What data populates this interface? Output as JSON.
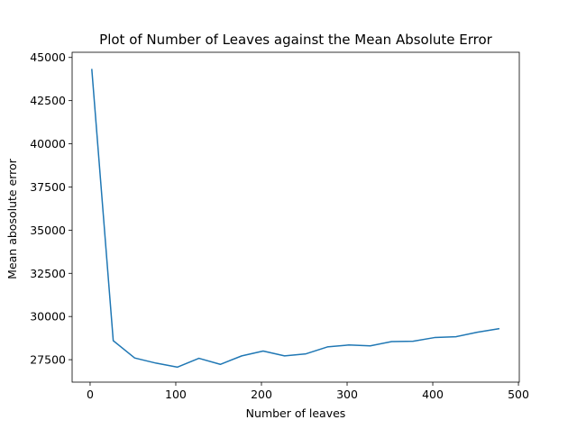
{
  "chart_data": {
    "type": "line",
    "title": "Plot of Number of Leaves against the Mean Absolute Error",
    "xlabel": "Number of leaves",
    "ylabel": "Mean abosolute error",
    "xlim": [
      -21,
      501
    ],
    "ylim": [
      26200,
      45300
    ],
    "xticks": [
      0,
      100,
      200,
      300,
      400,
      500
    ],
    "yticks": [
      27500,
      30000,
      32500,
      35000,
      37500,
      40000,
      42500,
      45000
    ],
    "xtick_labels": [
      "0",
      "100",
      "200",
      "300",
      "400",
      "500"
    ],
    "ytick_labels": [
      "27500",
      "30000",
      "32500",
      "35000",
      "37500",
      "40000",
      "42500",
      "45000"
    ],
    "grid": false,
    "series": [
      {
        "color": "#1f77b4",
        "x": [
          2,
          27,
          52,
          77,
          102,
          127,
          152,
          177,
          202,
          227,
          252,
          277,
          302,
          327,
          352,
          377,
          402,
          427,
          452,
          477
        ],
        "y": [
          44300,
          28600,
          27600,
          27300,
          27070,
          27580,
          27230,
          27720,
          28000,
          27720,
          27840,
          28240,
          28350,
          28300,
          28550,
          28570,
          28780,
          28830,
          29090,
          29290
        ]
      }
    ]
  }
}
